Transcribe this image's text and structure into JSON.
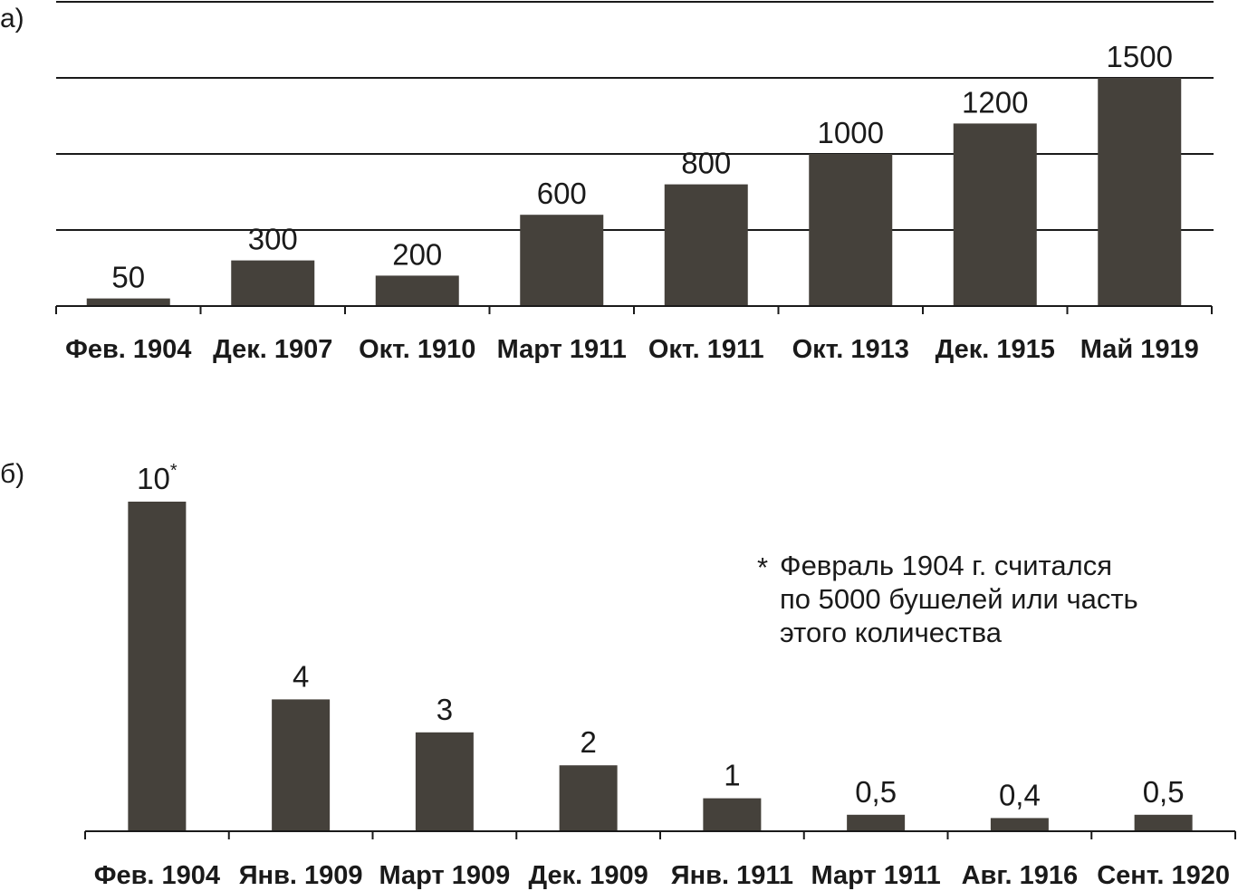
{
  "panels": [
    {
      "label": "а)",
      "chart_data": {
        "type": "bar",
        "categories": [
          "Фев. 1904",
          "Дек. 1907",
          "Окт. 1910",
          "Март 1911",
          "Окт. 1911",
          "Окт. 1913",
          "Дек. 1915",
          "Май 1919"
        ],
        "values": [
          50,
          300,
          200,
          600,
          800,
          1000,
          1200,
          1500
        ],
        "value_labels": [
          "50",
          "300",
          "200",
          "600",
          "800",
          "1000",
          "1200",
          "1500"
        ],
        "ylim": [
          0,
          2000
        ],
        "gridlines": [
          500,
          1000,
          1500,
          2000
        ],
        "grid": true,
        "title": "",
        "xlabel": "",
        "ylabel": ""
      }
    },
    {
      "label": "б)",
      "chart_data": {
        "type": "bar",
        "categories": [
          "Фев. 1904",
          "Янв. 1909",
          "Март 1909",
          "Дек. 1909",
          "Янв. 1911",
          "Март 1911",
          "Авг. 1916",
          "Сент. 1920"
        ],
        "values": [
          10,
          4,
          3,
          2,
          1,
          0.5,
          0.4,
          0.5
        ],
        "value_labels": [
          "10",
          "4",
          "3",
          "2",
          "1",
          "0,5",
          "0,4",
          "0,5"
        ],
        "first_label_mark": "*",
        "ylim": [
          0,
          10
        ],
        "grid": false,
        "title": "",
        "xlabel": "",
        "ylabel": ""
      }
    }
  ],
  "footnote": {
    "mark": "*",
    "lines": [
      "Февраль 1904 г. считался",
      "по 5000 бушелей или часть",
      "этого количества"
    ]
  },
  "colors": {
    "bar": "#45413b",
    "axis": "#1a1a1a",
    "text": "#1a1a1a"
  }
}
